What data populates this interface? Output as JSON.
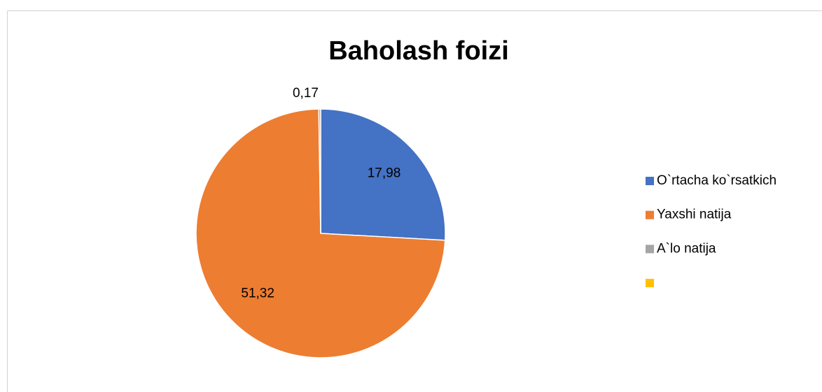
{
  "chart_data": {
    "type": "pie",
    "title": "Baholash foizi",
    "categories": [
      "O`rtacha ko`rsatkich",
      "Yaxshi natija",
      "A`lo natija",
      null
    ],
    "values": [
      17.98,
      51.32,
      0.17,
      null
    ],
    "value_labels": [
      "17,98",
      "51,32",
      "0,17",
      null
    ],
    "colors": [
      "#4472c4",
      "#ed7d31",
      "#a5a5a5",
      "#ffc000"
    ],
    "legend": "right"
  }
}
